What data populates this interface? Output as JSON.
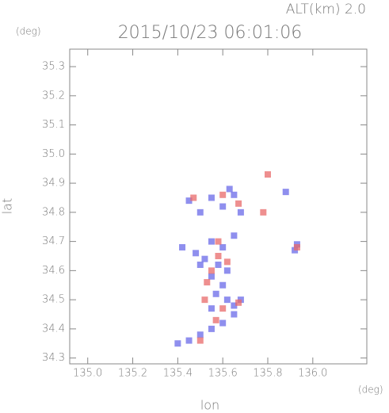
{
  "chart_data": {
    "type": "scatter",
    "title": "2015/10/23 06:01:06",
    "subtitle": "ALT(km) 2.0",
    "y_unit": "(deg)",
    "x_unit": "(deg)",
    "xlabel": "lon",
    "ylabel": "lat",
    "xlim": [
      134.92,
      136.24
    ],
    "ylim": [
      34.28,
      35.36
    ],
    "xticks": [
      {
        "value": 135,
        "label": "135.0"
      },
      135.2,
      135.4,
      135.6,
      135.8,
      {
        "value": 136,
        "label": "136.0"
      }
    ],
    "yticks": [
      34.3,
      34.4,
      34.5,
      34.6,
      34.7,
      34.8,
      34.9,
      {
        "value": 35,
        "label": "35.0"
      },
      35.1,
      35.2,
      35.3
    ],
    "series": [
      {
        "color": "#6a6ae8",
        "x": [
          135.55,
          135.6,
          135.45,
          135.65,
          135.68,
          135.5,
          135.93,
          135.92,
          135.55,
          135.6,
          135.48,
          135.52,
          135.58,
          135.62,
          135.55,
          135.6,
          135.57,
          135.62,
          135.55,
          135.65,
          135.6,
          135.55,
          135.5,
          135.45,
          135.4,
          135.65,
          135.68,
          135.5,
          135.65,
          135.42,
          135.63,
          135.88
        ],
        "y": [
          34.85,
          34.82,
          34.84,
          34.86,
          34.8,
          34.8,
          34.69,
          34.67,
          34.7,
          34.68,
          34.66,
          34.64,
          34.62,
          34.6,
          34.58,
          34.55,
          34.52,
          34.5,
          34.47,
          34.45,
          34.42,
          34.4,
          34.38,
          34.36,
          34.35,
          34.48,
          34.5,
          34.62,
          34.72,
          34.68,
          34.88,
          34.87
        ]
      },
      {
        "color": "#e86a6a",
        "x": [
          135.6,
          135.78,
          135.8,
          135.67,
          135.5,
          135.55,
          135.58,
          135.62,
          135.53,
          135.6,
          135.67,
          135.52,
          135.57,
          135.58,
          135.93,
          135.47
        ],
        "y": [
          34.86,
          34.8,
          34.93,
          34.83,
          34.36,
          34.6,
          34.65,
          34.63,
          34.56,
          34.47,
          34.49,
          34.5,
          34.43,
          34.7,
          34.68,
          34.85
        ]
      }
    ]
  }
}
